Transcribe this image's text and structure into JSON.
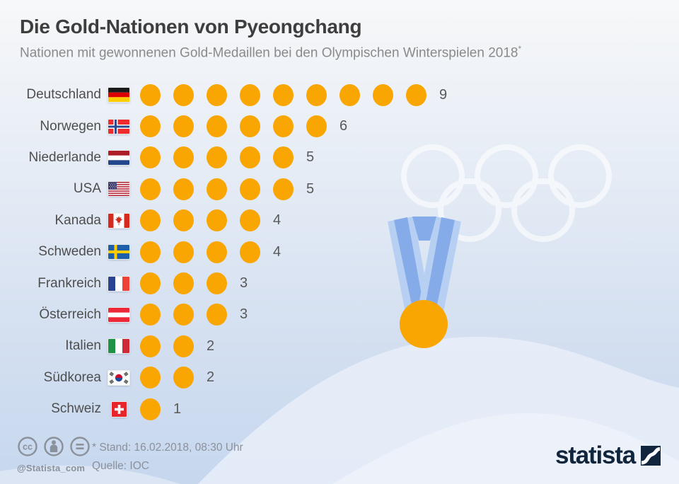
{
  "header": {
    "title": "Die Gold-Nationen von Pyeongchang",
    "subtitle": "Nationen mit gewonnenen Gold-Medaillen bei den Olympischen Winterspielen 2018",
    "subtitle_mark": "*"
  },
  "chart_data": {
    "type": "bar",
    "variant": "pictogram",
    "title": "Die Gold-Nationen von Pyeongchang",
    "subtitle": "Nationen mit gewonnenen Gold-Medaillen bei den Olympischen Winterspielen 2018*",
    "unit": "Gold-Medaillen",
    "categories": [
      "Deutschland",
      "Norwegen",
      "Niederlande",
      "USA",
      "Kanada",
      "Schweden",
      "Frankreich",
      "Österreich",
      "Italien",
      "Südkorea",
      "Schweiz"
    ],
    "values": [
      9,
      6,
      5,
      5,
      4,
      4,
      3,
      3,
      2,
      2,
      1
    ],
    "rows": [
      {
        "label": "Deutschland",
        "flag": "de",
        "value": 9
      },
      {
        "label": "Norwegen",
        "flag": "no",
        "value": 6
      },
      {
        "label": "Niederlande",
        "flag": "nl",
        "value": 5
      },
      {
        "label": "USA",
        "flag": "us",
        "value": 5
      },
      {
        "label": "Kanada",
        "flag": "ca",
        "value": 4
      },
      {
        "label": "Schweden",
        "flag": "se",
        "value": 4
      },
      {
        "label": "Frankreich",
        "flag": "fr",
        "value": 3
      },
      {
        "label": "Österreich",
        "flag": "at",
        "value": 3
      },
      {
        "label": "Italien",
        "flag": "it",
        "value": 2
      },
      {
        "label": "Südkorea",
        "flag": "kr",
        "value": 2
      },
      {
        "label": "Schweiz",
        "flag": "ch",
        "value": 1
      }
    ],
    "source": "IOC",
    "as_of": "16.02.2018, 08:30 Uhr",
    "legend": "none",
    "grid": false
  },
  "footer": {
    "note": "* Stand: 16.02.2018, 08:30 Uhr",
    "source": "Quelle: IOC",
    "handle": "@Statista_com",
    "brand": "statista"
  },
  "colors": {
    "gold": "#F9A602",
    "ribbon_light": "#B6CFF2",
    "ribbon_dark": "#85ACE8",
    "rings_white": "#FFFFFF",
    "brand_navy": "#11263C",
    "title_gray": "#3E3E3E",
    "subtitle_gray": "#8A8A8A",
    "label_gray": "#4E4E4E",
    "count_gray": "#595959",
    "footer_gray": "#8B919B"
  }
}
